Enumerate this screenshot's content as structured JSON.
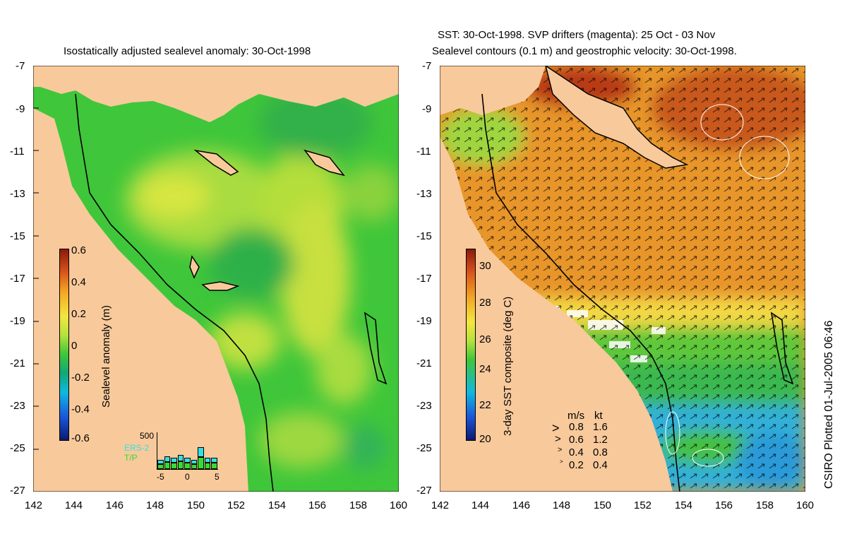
{
  "left_panel": {
    "title": "Isostatically adjusted sealevel anomaly: 30-Oct-1998",
    "colorbar": {
      "label": "Sealevel anomaly (m)",
      "ticks": [
        "0.6",
        "0.4",
        "0.2",
        "0",
        "-0.2",
        "-0.4",
        "-0.6"
      ]
    },
    "inset": {
      "max_label": "500",
      "x_ticks": [
        "-5",
        "0",
        "5"
      ],
      "legend": [
        "ERS-2",
        "T/P"
      ],
      "ers2_color": "#33e0e0",
      "tp_color": "#33dd33",
      "bars": [
        0.25,
        0.35,
        0.3,
        0.38,
        0.32,
        0.25,
        0.6,
        0.3,
        0.3
      ]
    }
  },
  "right_panel": {
    "title_line1": "SST: 30-Oct-1998. SVP drifters (magenta): 25 Oct - 03 Nov",
    "title_line2": "Sealevel contours (0.1 m) and geostrophic velocity: 30-Oct-1998.",
    "colorbar": {
      "label": "3-day SST composite (deg C)",
      "ticks": [
        "30",
        "28",
        "26",
        "24",
        "22",
        "20"
      ]
    },
    "velocity_key": {
      "header_ms": "m/s",
      "header_kt": "kt",
      "rows": [
        {
          "ms": "0.8",
          "kt": "1.6"
        },
        {
          "ms": "0.6",
          "kt": "1.2"
        },
        {
          "ms": "0.4",
          "kt": "0.8"
        },
        {
          "ms": "0.2",
          "kt": "0.4"
        }
      ]
    }
  },
  "axes": {
    "lat_ticks": [
      "-7",
      "-9",
      "-11",
      "-13",
      "-15",
      "-17",
      "-19",
      "-21",
      "-23",
      "-25",
      "-27"
    ],
    "lon_ticks": [
      "142",
      "144",
      "146",
      "148",
      "150",
      "152",
      "154",
      "156",
      "158",
      "160"
    ]
  },
  "credit": "CSIRO Plotted 01-Jul-2005 06:46",
  "colors": {
    "land": "#f8c99b",
    "sea_green": "#3fc63a",
    "sst_orange": "#e89a2a"
  }
}
